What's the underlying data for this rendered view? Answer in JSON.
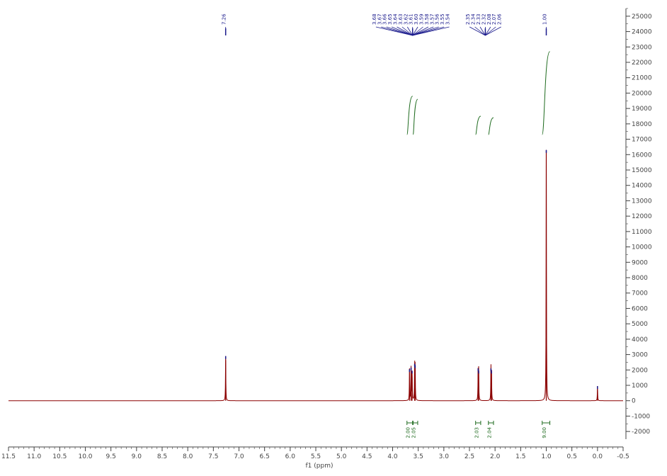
{
  "chart_data": {
    "type": "line",
    "title": "",
    "xlabel": "f1 (ppm)",
    "ylabel": "",
    "xlim": [
      11.5,
      -0.5
    ],
    "ylim": [
      -2500,
      25500
    ],
    "x_ticks": [
      11.5,
      11.0,
      10.5,
      10.0,
      9.5,
      9.0,
      8.5,
      8.0,
      7.5,
      7.0,
      6.5,
      6.0,
      5.5,
      5.0,
      4.5,
      4.0,
      3.5,
      3.0,
      2.5,
      2.0,
      1.5,
      1.0,
      0.5,
      0.0,
      -0.5
    ],
    "x_tick_labels": [
      "11.5",
      "11.0",
      "10.5",
      "10.0",
      "9.5",
      "9.0",
      "8.5",
      "8.0",
      "7.5",
      "7.0",
      "6.5",
      "6.0",
      "5.5",
      "5.0",
      "4.5",
      "4.0",
      "3.5",
      "3.0",
      "2.5",
      "2.0",
      "1.5",
      "1.0",
      "0.5",
      "0.0",
      "-0.5"
    ],
    "y_ticks": [
      25000,
      24000,
      23000,
      22000,
      21000,
      20000,
      19000,
      18000,
      17000,
      16000,
      15000,
      14000,
      13000,
      12000,
      11000,
      10000,
      9000,
      8000,
      7000,
      6000,
      5000,
      4000,
      3000,
      2000,
      1000,
      0,
      -1000,
      -2000
    ],
    "y_tick_labels": [
      "25000",
      "24000",
      "23000",
      "22000",
      "21000",
      "20000",
      "19000",
      "18000",
      "17000",
      "16000",
      "15000",
      "14000",
      "13000",
      "12000",
      "11000",
      "10000",
      "9000",
      "8000",
      "7000",
      "6000",
      "5000",
      "4000",
      "3000",
      "2000",
      "1000",
      "0",
      "-1000",
      "-2000"
    ],
    "grid": false,
    "series": [
      {
        "color": "#8b0000",
        "peaks": [
          {
            "ppm": 7.26,
            "height": 2900
          },
          {
            "ppm": 3.67,
            "height": 2050
          },
          {
            "ppm": 3.64,
            "height": 2150
          },
          {
            "ppm": 3.62,
            "height": 1950
          },
          {
            "ppm": 3.57,
            "height": 2400
          },
          {
            "ppm": 3.56,
            "height": 2300
          },
          {
            "ppm": 2.33,
            "height": 2100
          },
          {
            "ppm": 2.32,
            "height": 1950
          },
          {
            "ppm": 2.08,
            "height": 2100
          },
          {
            "ppm": 2.07,
            "height": 1950
          },
          {
            "ppm": 1.0,
            "height": 16300
          },
          {
            "ppm": 0.0,
            "height": 950
          }
        ]
      }
    ],
    "peak_labels": [
      "7.26",
      "3.68",
      "3.67",
      "3.66",
      "3.65",
      "3.64",
      "3.63",
      "3.62",
      "3.61",
      "3.60",
      "3.59",
      "3.58",
      "3.57",
      "3.56",
      "3.55",
      "3.54",
      "2.35",
      "2.34",
      "2.33",
      "2.32",
      "2.08",
      "2.07",
      "2.06",
      "1.00"
    ],
    "integrals": [
      {
        "from": 3.72,
        "to": 3.61,
        "top_value": 19800,
        "label": "2.00"
      },
      {
        "from": 3.6,
        "to": 3.51,
        "top_value": 19600,
        "label": "2.05"
      },
      {
        "from": 2.38,
        "to": 2.28,
        "top_value": 18500,
        "label": "2.03"
      },
      {
        "from": 2.13,
        "to": 2.03,
        "top_value": 18400,
        "label": "2.04"
      },
      {
        "from": 1.08,
        "to": 0.93,
        "top_value": 22700,
        "label": "9.00"
      }
    ],
    "colors": {
      "spectrum": "#8b0000",
      "peak_marker": "#1a1a8c",
      "integral": "#1f6b1f",
      "axis": "#444444"
    }
  }
}
